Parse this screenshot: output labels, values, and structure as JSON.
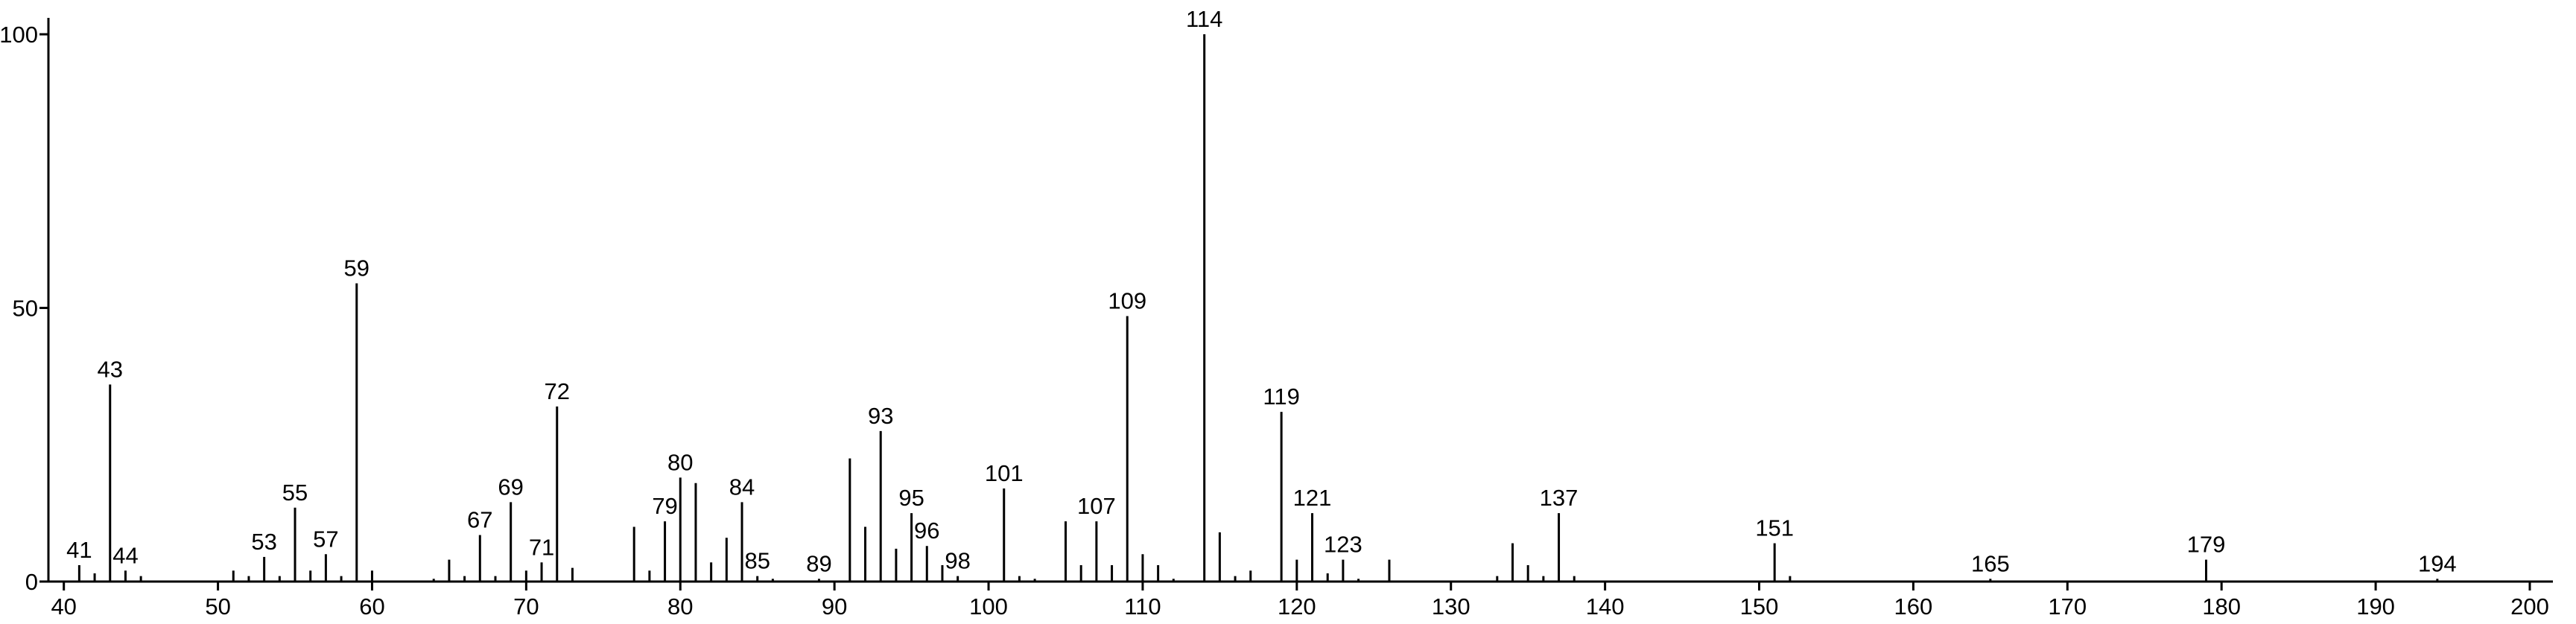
{
  "chart_data": {
    "type": "spectrum",
    "x": [
      41,
      42,
      43,
      44,
      45,
      51,
      52,
      53,
      54,
      55,
      56,
      57,
      58,
      59,
      60,
      64,
      65,
      66,
      67,
      68,
      69,
      70,
      71,
      72,
      73,
      77,
      78,
      79,
      80,
      81,
      82,
      83,
      84,
      85,
      86,
      89,
      91,
      92,
      93,
      94,
      95,
      96,
      97,
      98,
      101,
      102,
      103,
      105,
      106,
      107,
      108,
      109,
      110,
      111,
      112,
      114,
      115,
      116,
      117,
      119,
      120,
      121,
      122,
      123,
      124,
      126,
      133,
      134,
      135,
      136,
      137,
      138,
      151,
      152,
      165,
      179,
      194
    ],
    "values": [
      3,
      1.5,
      36,
      2,
      1,
      2,
      1,
      4.5,
      1,
      13.5,
      2,
      5,
      1,
      54.5,
      2,
      0.5,
      4,
      1,
      8.5,
      1,
      14.5,
      2,
      3.5,
      32,
      2.5,
      10,
      2,
      11,
      19,
      18,
      3.5,
      8,
      14.5,
      1,
      0.5,
      0.5,
      22.5,
      10,
      27.5,
      6,
      12.5,
      6.5,
      3,
      1,
      17,
      1,
      0.5,
      11,
      3,
      11,
      3,
      48.5,
      5,
      3,
      0.5,
      100,
      9,
      1,
      2,
      31,
      4,
      12.5,
      1.5,
      4,
      0.5,
      4,
      1,
      7,
      3,
      1,
      12.5,
      1,
      7,
      1,
      0.5,
      4,
      0.5
    ],
    "peak_labels": [
      41,
      null,
      43,
      44,
      null,
      null,
      null,
      53,
      null,
      55,
      null,
      57,
      null,
      59,
      null,
      null,
      null,
      null,
      67,
      null,
      69,
      null,
      71,
      72,
      null,
      null,
      null,
      79,
      80,
      null,
      null,
      null,
      84,
      85,
      null,
      89,
      null,
      null,
      93,
      null,
      95,
      96,
      null,
      98,
      101,
      null,
      null,
      null,
      null,
      107,
      null,
      109,
      null,
      null,
      null,
      114,
      null,
      null,
      null,
      119,
      null,
      121,
      null,
      123,
      null,
      null,
      null,
      null,
      null,
      null,
      137,
      null,
      151,
      null,
      165,
      179,
      194
    ],
    "color": "#000000",
    "xlim": [
      39,
      201.5
    ],
    "ylim": [
      0,
      103
    ],
    "xticks": [
      40,
      50,
      60,
      70,
      80,
      90,
      100,
      110,
      120,
      130,
      140,
      150,
      160,
      170,
      180,
      190,
      200
    ],
    "yticks": [
      0,
      50,
      100
    ]
  }
}
